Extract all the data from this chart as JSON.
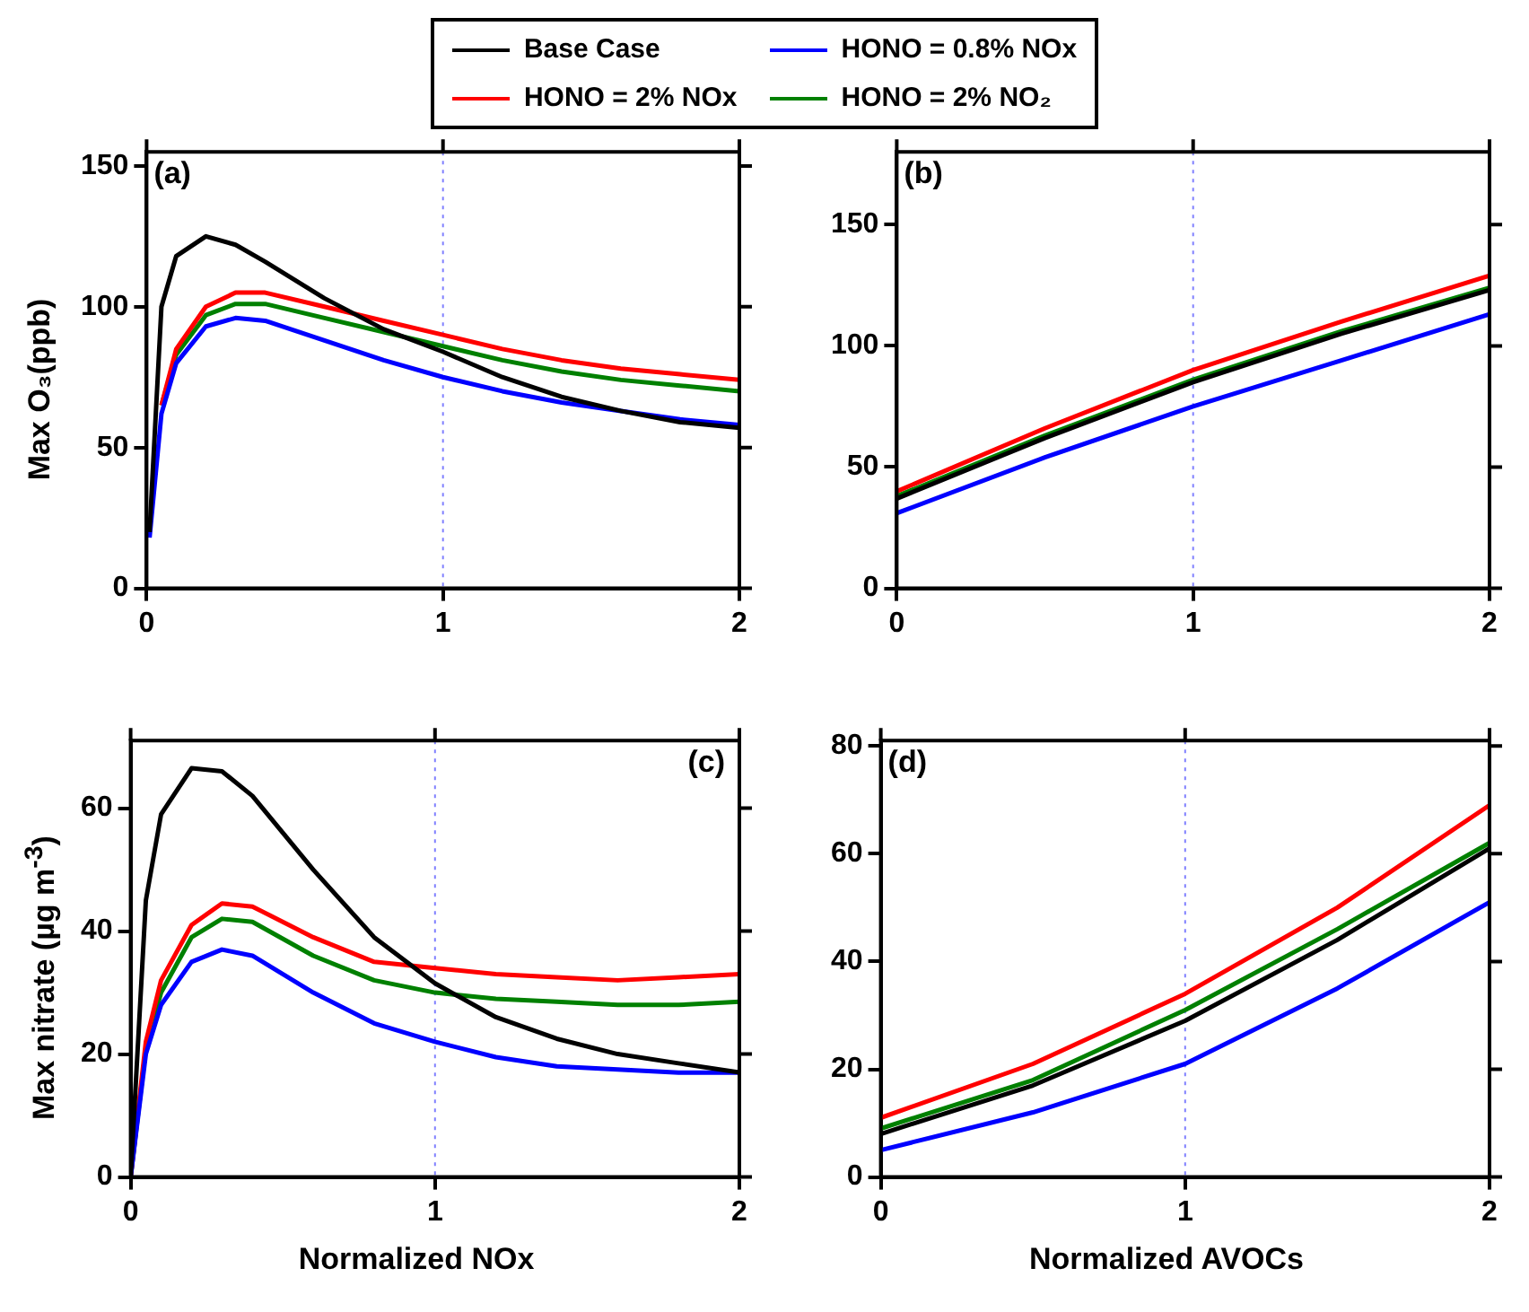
{
  "chart_data": [
    {
      "type": "line",
      "annotations": [
        "(a)"
      ],
      "ylabel": "Max O₃(ppb)",
      "legend": "top",
      "grid": false,
      "line_style": "solid",
      "marker": "none",
      "x": [
        0.01,
        0.05,
        0.1,
        0.2,
        0.3,
        0.4,
        0.6,
        0.8,
        1,
        1.2,
        1.4,
        1.6,
        1.8,
        2
      ],
      "xlim": [
        0,
        2
      ],
      "xticks": [
        0,
        1,
        2
      ],
      "ylim": [
        0,
        155
      ],
      "yticks": [
        0,
        50,
        100,
        150
      ],
      "ref_lines": [
        {
          "axis": "x",
          "value": 1,
          "color": "#8080ff",
          "line_style": "dotted"
        }
      ],
      "series": [
        {
          "name": "Base Case",
          "color": "#000000",
          "values": [
            20,
            100,
            118,
            125,
            122,
            116,
            103,
            92,
            84,
            75,
            68,
            63,
            59,
            57
          ]
        },
        {
          "name": "HONO = 0.8% NOx",
          "color": "#0000ff",
          "values": [
            18,
            62,
            80,
            93,
            96,
            95,
            88,
            81,
            75,
            70,
            66,
            63,
            60,
            58
          ]
        },
        {
          "name": "HONO = 2% NOx",
          "color": "#ff0000",
          "values": [
            null,
            65,
            85,
            100,
            105,
            105,
            100,
            95,
            90,
            85,
            81,
            78,
            76,
            74
          ]
        },
        {
          "name": "HONO = 2%  NO₂",
          "color": "#008000",
          "values": [
            null,
            65,
            83,
            97,
            101,
            101,
            96,
            91,
            86,
            81,
            77,
            74,
            72,
            70
          ]
        }
      ]
    },
    {
      "type": "line",
      "annotations": [
        "(b)"
      ],
      "grid": false,
      "line_style": "solid",
      "marker": "none",
      "x": [
        0,
        0.5,
        1,
        1.5,
        2
      ],
      "xlim": [
        0,
        2
      ],
      "xticks": [
        0,
        1,
        2
      ],
      "ylim": [
        0,
        180
      ],
      "yticks": [
        0,
        50,
        100,
        150
      ],
      "ref_lines": [
        {
          "axis": "x",
          "value": 1,
          "color": "#8080ff",
          "line_style": "dotted"
        }
      ],
      "series": [
        {
          "color": "#000000",
          "values": [
            37,
            62,
            85,
            105,
            123
          ]
        },
        {
          "color": "#0000ff",
          "values": [
            31,
            54,
            75,
            94,
            113
          ]
        },
        {
          "color": "#ff0000",
          "values": [
            40,
            66,
            90,
            110,
            129
          ]
        },
        {
          "color": "#008000",
          "values": [
            38,
            63,
            86,
            106,
            124
          ]
        }
      ]
    },
    {
      "type": "line",
      "annotations": [
        "(c)"
      ],
      "xlabel": "Normalized NOx",
      "ylabel": "Max nitrate (µg m$^{-3}$)",
      "grid": false,
      "line_style": "solid",
      "marker": "none",
      "x": [
        0,
        0.05,
        0.1,
        0.2,
        0.3,
        0.4,
        0.6,
        0.8,
        1,
        1.2,
        1.4,
        1.6,
        1.8,
        2
      ],
      "xlim": [
        0,
        2
      ],
      "xticks": [
        0,
        1,
        2
      ],
      "ylim": [
        0,
        71
      ],
      "yticks": [
        0,
        20,
        40,
        60
      ],
      "ref_lines": [
        {
          "axis": "x",
          "value": 1,
          "color": "#8080ff",
          "line_style": "dotted"
        }
      ],
      "series": [
        {
          "color": "#000000",
          "values": [
            0,
            45,
            59,
            66.5,
            66,
            62,
            50,
            39,
            31.5,
            26,
            22.5,
            20,
            18.5,
            17
          ]
        },
        {
          "color": "#0000ff",
          "values": [
            0,
            20,
            28,
            35,
            37,
            36,
            30,
            25,
            22,
            19.5,
            18,
            17.5,
            17,
            17
          ]
        },
        {
          "color": "#ff0000",
          "values": [
            0,
            22,
            32,
            41,
            44.5,
            44,
            39,
            35,
            34,
            33,
            32.5,
            32,
            32.5,
            33
          ]
        },
        {
          "color": "#008000",
          "values": [
            0,
            21,
            30,
            39,
            42,
            41.5,
            36,
            32,
            30,
            29,
            28.5,
            28,
            28,
            28.5
          ]
        }
      ]
    },
    {
      "type": "line",
      "annotations": [
        "(d)"
      ],
      "xlabel": "Normalized AVOCs",
      "grid": false,
      "line_style": "solid",
      "marker": "none",
      "x": [
        0,
        0.5,
        1,
        1.5,
        2
      ],
      "xlim": [
        0,
        2
      ],
      "xticks": [
        0,
        1,
        2
      ],
      "ylim": [
        0,
        81
      ],
      "yticks": [
        0,
        20,
        40,
        60,
        80
      ],
      "ref_lines": [
        {
          "axis": "x",
          "value": 1,
          "color": "#8080ff",
          "line_style": "dotted"
        }
      ],
      "series": [
        {
          "color": "#000000",
          "values": [
            8,
            17,
            29,
            44,
            61
          ]
        },
        {
          "color": "#0000ff",
          "values": [
            5,
            12,
            21,
            35,
            51
          ]
        },
        {
          "color": "#ff0000",
          "values": [
            11,
            21,
            34,
            50,
            69
          ]
        },
        {
          "color": "#008000",
          "values": [
            9,
            18,
            31,
            46,
            62
          ]
        }
      ]
    }
  ]
}
